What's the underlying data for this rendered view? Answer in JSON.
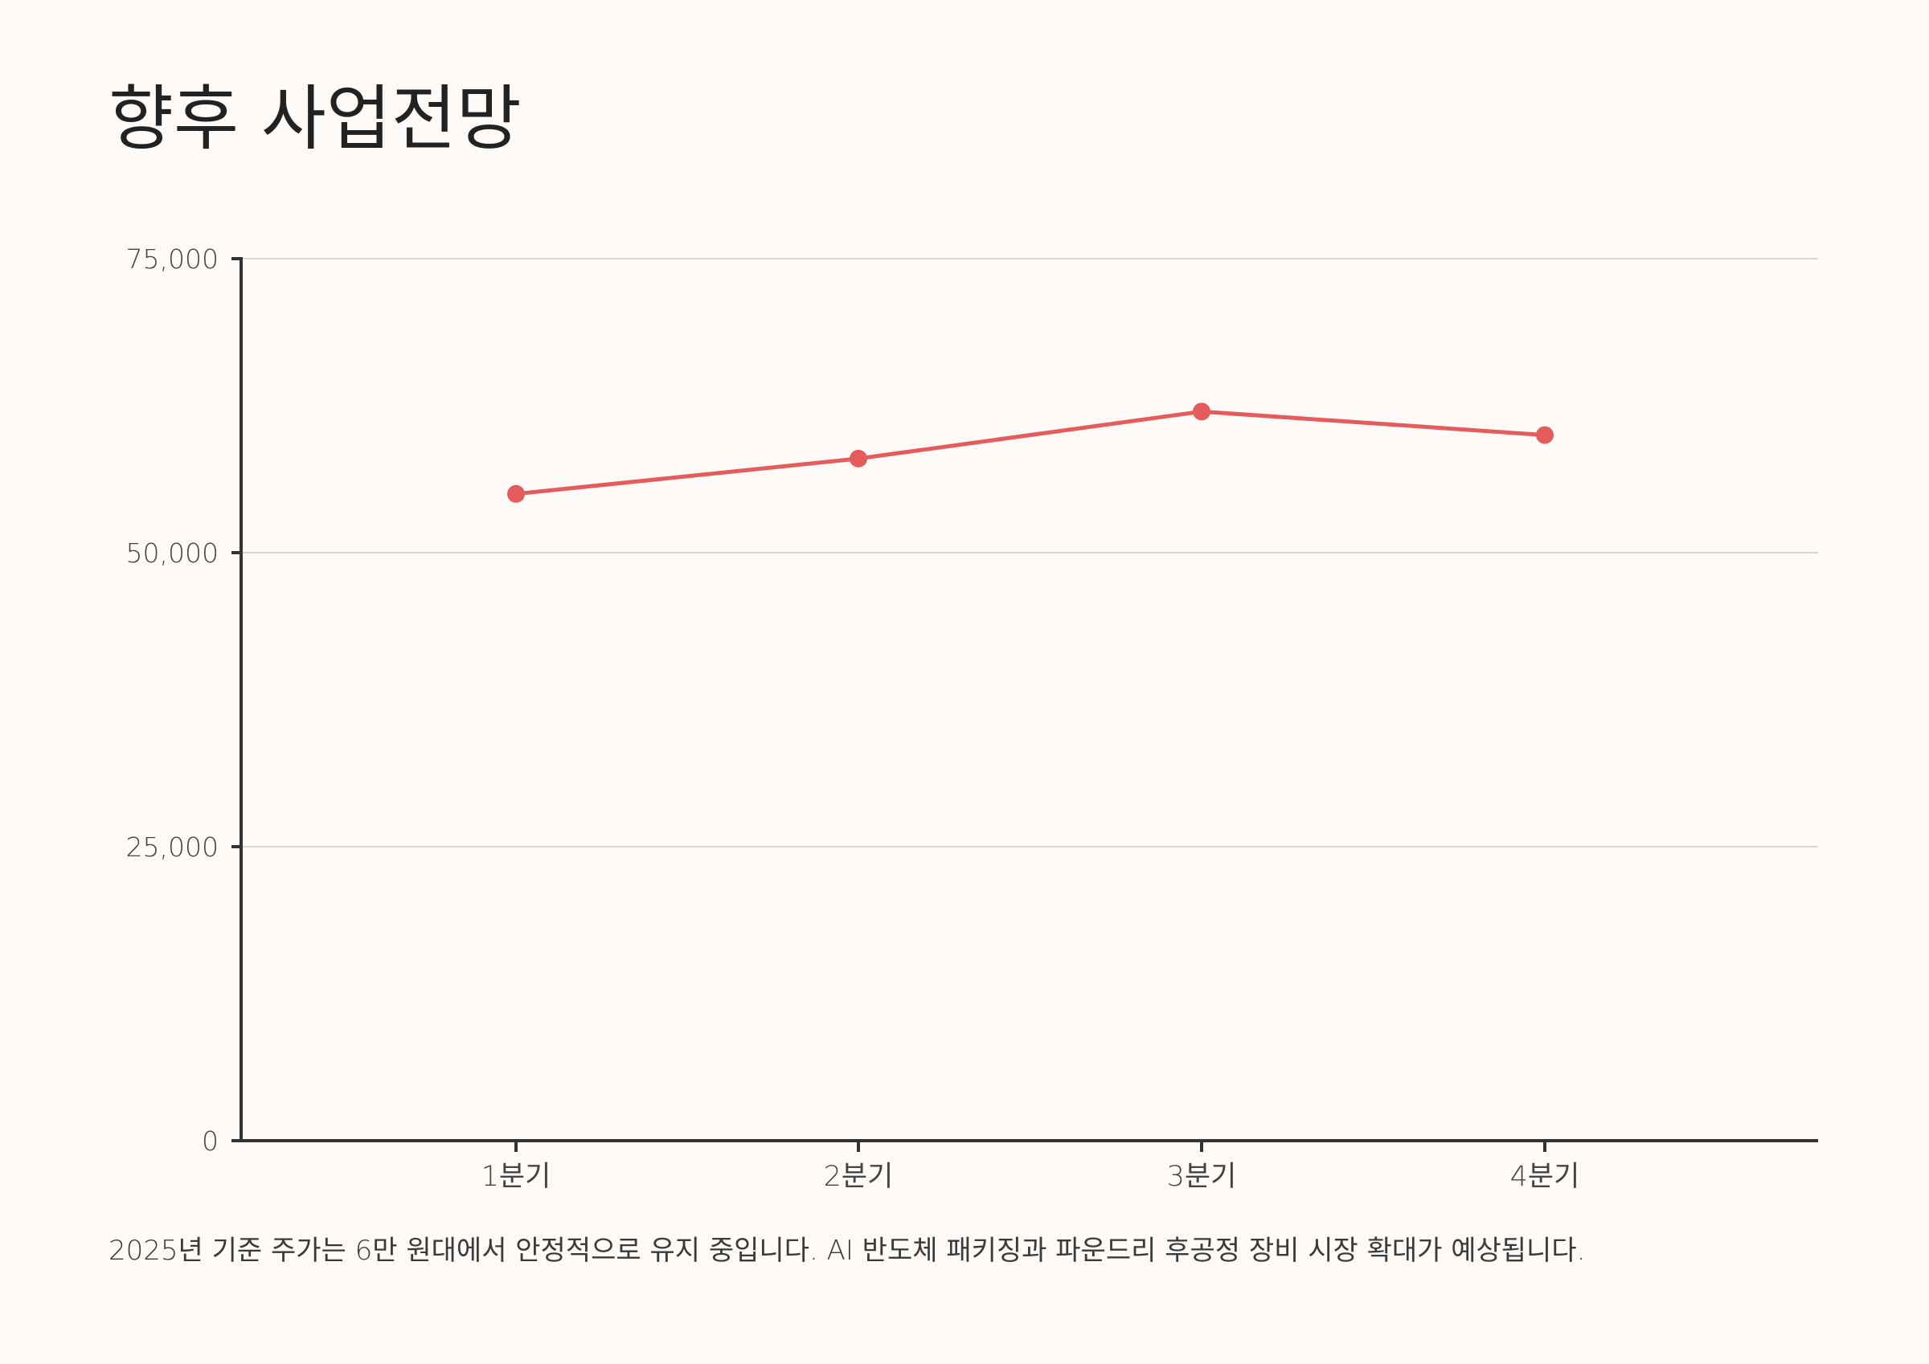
{
  "page": {
    "title": "향후 사업전망",
    "caption": "2025년 기준 주가는 6만 원대에서 안정적으로 유지 중입니다. AI 반도체 패키징과 파운드리 후공정 장비 시장 확대가 예상됩니다."
  },
  "chart_data": {
    "type": "line",
    "title": "",
    "xlabel": "",
    "ylabel": "",
    "categories": [
      "1분기",
      "2분기",
      "3분기",
      "4분기"
    ],
    "series": [
      {
        "values": [
          55000,
          58000,
          62000,
          60000
        ]
      }
    ],
    "ylim": [
      0,
      75000
    ],
    "yticks": [
      0,
      25000,
      50000,
      75000
    ],
    "ytick_labels": [
      "0",
      "25,000",
      "50,000",
      "75,000"
    ],
    "grid": true,
    "legend": "none",
    "colors": {
      "line": "#e55c5c",
      "axis": "#333333",
      "grid": "#d6d6d6",
      "tick_text": "#444444"
    }
  }
}
